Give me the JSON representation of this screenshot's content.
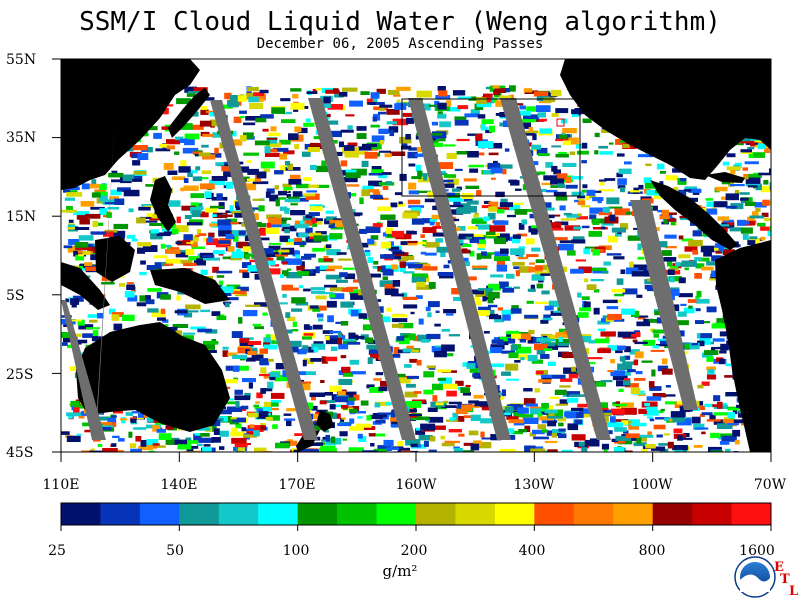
{
  "title": "SSM/I Cloud Liquid Water (Weng algorithm)",
  "subtitle": "December 06, 2005  Ascending Passes",
  "lat_labels": [
    "55N",
    "35N",
    "15N",
    "5S",
    "25S",
    "45S"
  ],
  "lon_labels": [
    "110E",
    "140E",
    "170E",
    "160W",
    "130W",
    "100W",
    "70W"
  ],
  "colorbar": {
    "colors": [
      "#03116e",
      "#0633b7",
      "#1060ff",
      "#0f9999",
      "#12c8c8",
      "#00ffff",
      "#009500",
      "#00c300",
      "#00ff00",
      "#b3b300",
      "#d9d900",
      "#ffff00",
      "#ff5000",
      "#ff7800",
      "#ffa000",
      "#960000",
      "#c80000",
      "#ff1010"
    ],
    "tick_labels": [
      "25",
      "50",
      "100",
      "200",
      "400",
      "800",
      "1600"
    ]
  },
  "units": "g/m²",
  "map_colors": {
    "land": "#000000",
    "swath_gap": "#6e6e6e",
    "clear": "#ffffff",
    "box_outline": "#000000",
    "marker": "#e00000"
  },
  "logo": {
    "name": "NOAA",
    "agency_letters": [
      "E",
      "T",
      "L"
    ]
  }
}
